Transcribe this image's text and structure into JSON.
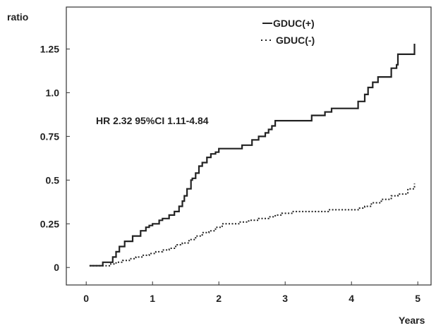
{
  "chart_data": {
    "type": "line",
    "title": "",
    "xlabel": "Years",
    "ylabel": "ratio",
    "xlim": [
      -0.3,
      5.2
    ],
    "ylim": [
      -0.1,
      1.49
    ],
    "xticks": [
      0,
      1,
      2,
      3,
      4,
      5
    ],
    "xtick_labels": [
      "0",
      "1",
      "2",
      "3",
      "4",
      "5"
    ],
    "yticks": [
      0,
      0.25,
      0.5,
      0.75,
      1.0,
      1.25
    ],
    "ytick_labels": [
      "0",
      "0.25",
      "0.5",
      "0.75",
      "1.0",
      "1.25"
    ],
    "grid": false,
    "legend_position": "top-right",
    "annotation": "HR 2.32 95%CI 1.11-4.84",
    "series": [
      {
        "name": "GDUC(+)",
        "style": "solid",
        "color": "#222222",
        "x": [
          0.05,
          0.25,
          0.4,
          0.45,
          0.5,
          0.58,
          0.7,
          0.82,
          0.9,
          0.95,
          1.0,
          1.1,
          1.15,
          1.25,
          1.33,
          1.4,
          1.45,
          1.48,
          1.52,
          1.58,
          1.6,
          1.65,
          1.7,
          1.75,
          1.82,
          1.88,
          1.95,
          2.0,
          2.15,
          2.2,
          2.35,
          2.5,
          2.6,
          2.7,
          2.75,
          2.8,
          2.85,
          3.0,
          3.3,
          3.4,
          3.6,
          3.7,
          4.0,
          4.1,
          4.2,
          4.25,
          4.32,
          4.4,
          4.6,
          4.68,
          4.7,
          4.95
        ],
        "y": [
          0.01,
          0.03,
          0.06,
          0.09,
          0.12,
          0.15,
          0.18,
          0.21,
          0.23,
          0.24,
          0.25,
          0.27,
          0.28,
          0.3,
          0.32,
          0.35,
          0.38,
          0.41,
          0.45,
          0.5,
          0.51,
          0.54,
          0.58,
          0.6,
          0.63,
          0.65,
          0.66,
          0.68,
          0.68,
          0.68,
          0.7,
          0.73,
          0.75,
          0.77,
          0.79,
          0.81,
          0.84,
          0.84,
          0.84,
          0.87,
          0.89,
          0.91,
          0.91,
          0.95,
          0.99,
          1.03,
          1.06,
          1.09,
          1.14,
          1.16,
          1.22,
          1.28
        ]
      },
      {
        "name": "GDUC(-)",
        "style": "dotted",
        "color": "#222222",
        "x": [
          0.05,
          0.35,
          0.45,
          0.55,
          0.65,
          0.75,
          0.85,
          0.95,
          1.05,
          1.15,
          1.25,
          1.35,
          1.45,
          1.55,
          1.65,
          1.75,
          1.85,
          1.95,
          2.05,
          2.15,
          2.3,
          2.45,
          2.6,
          2.75,
          2.85,
          2.95,
          3.1,
          3.3,
          3.5,
          3.65,
          3.8,
          3.95,
          4.1,
          4.2,
          4.3,
          4.45,
          4.6,
          4.7,
          4.85,
          4.95
        ],
        "y": [
          0.01,
          0.02,
          0.03,
          0.04,
          0.05,
          0.06,
          0.07,
          0.08,
          0.09,
          0.1,
          0.11,
          0.13,
          0.14,
          0.16,
          0.18,
          0.2,
          0.21,
          0.23,
          0.25,
          0.25,
          0.26,
          0.27,
          0.28,
          0.29,
          0.3,
          0.31,
          0.32,
          0.32,
          0.32,
          0.33,
          0.33,
          0.33,
          0.34,
          0.35,
          0.37,
          0.39,
          0.41,
          0.42,
          0.45,
          0.48
        ]
      }
    ]
  }
}
